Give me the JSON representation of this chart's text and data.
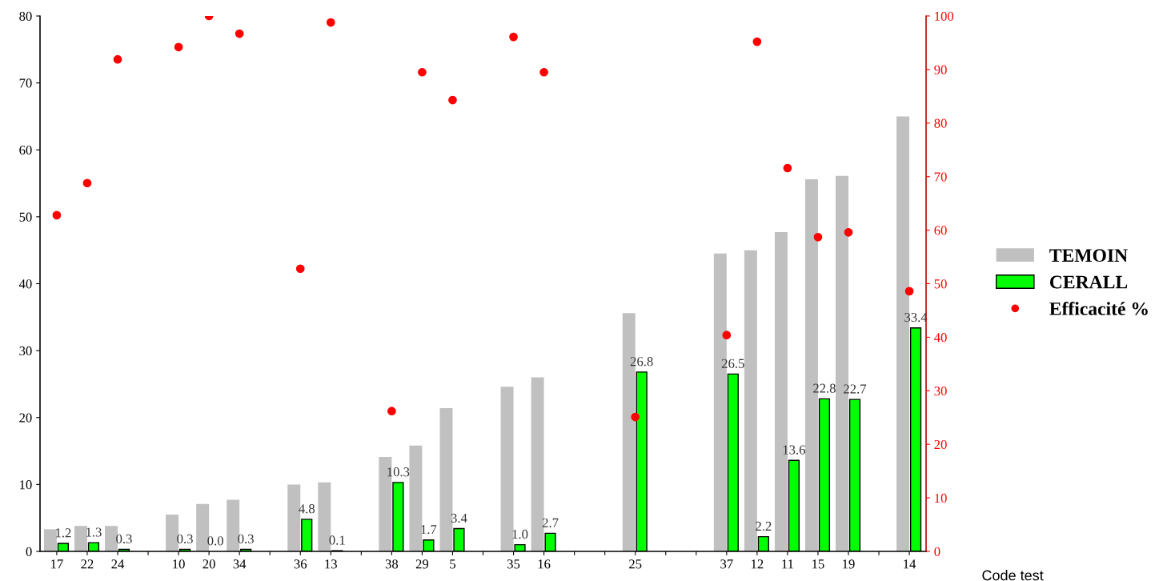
{
  "chart_data": {
    "type": "bar",
    "xlabel": "Code test",
    "categories": [
      "17",
      "22",
      "24",
      null,
      "10",
      "20",
      "34",
      null,
      "36",
      "13",
      null,
      "38",
      "29",
      "5",
      null,
      "35",
      "16",
      null,
      null,
      "25",
      null,
      null,
      "37",
      "12",
      "11",
      "15",
      "19",
      null,
      "14"
    ],
    "series": [
      {
        "name": "TEMOIN",
        "color": "#c0c0c0",
        "values": [
          3.3,
          3.8,
          3.8,
          null,
          5.5,
          7.1,
          7.7,
          null,
          10.0,
          10.3,
          null,
          14.1,
          15.8,
          21.4,
          null,
          24.6,
          26.0,
          null,
          null,
          35.6,
          null,
          null,
          44.5,
          45.0,
          47.7,
          55.6,
          56.1,
          null,
          65.0
        ]
      },
      {
        "name": "CERALL",
        "color": "#00ff00",
        "value_labels": [
          "1.2",
          "1.3",
          "0.3",
          null,
          "0.3",
          "0.0",
          "0.3",
          null,
          "4.8",
          "0.1",
          null,
          "10.3",
          "1.7",
          "3.4",
          null,
          "1.0",
          "2.7",
          null,
          null,
          "26.8",
          null,
          null,
          "26.5",
          "2.2",
          "13.6",
          "22.8",
          "22.7",
          null,
          "33.4"
        ],
        "values": [
          1.2,
          1.3,
          0.3,
          null,
          0.3,
          0.0,
          0.3,
          null,
          4.8,
          0.1,
          null,
          10.3,
          1.7,
          3.4,
          null,
          1.0,
          2.7,
          null,
          null,
          26.8,
          null,
          null,
          26.5,
          2.2,
          13.6,
          22.8,
          22.7,
          null,
          33.4
        ]
      },
      {
        "name": "Efficacité %",
        "type": "scatter",
        "axis": "y2",
        "color": "#ff0000",
        "marker": "circle",
        "values": [
          62.8,
          68.8,
          91.9,
          null,
          94.2,
          100,
          96.7,
          null,
          52.8,
          98.8,
          null,
          26.2,
          89.5,
          84.3,
          null,
          96.1,
          89.5,
          null,
          null,
          25.1,
          null,
          null,
          40.4,
          95.2,
          71.6,
          58.7,
          59.6,
          null,
          48.6
        ]
      }
    ],
    "ylim": [
      0,
      80
    ],
    "yticks": [
      0,
      10,
      20,
      30,
      40,
      50,
      60,
      70,
      80
    ],
    "y2lim": [
      0,
      100
    ],
    "y2ticks": [
      0,
      10,
      20,
      30,
      40,
      50,
      60,
      70,
      80,
      90,
      100
    ],
    "grid": false,
    "legend": "right"
  }
}
